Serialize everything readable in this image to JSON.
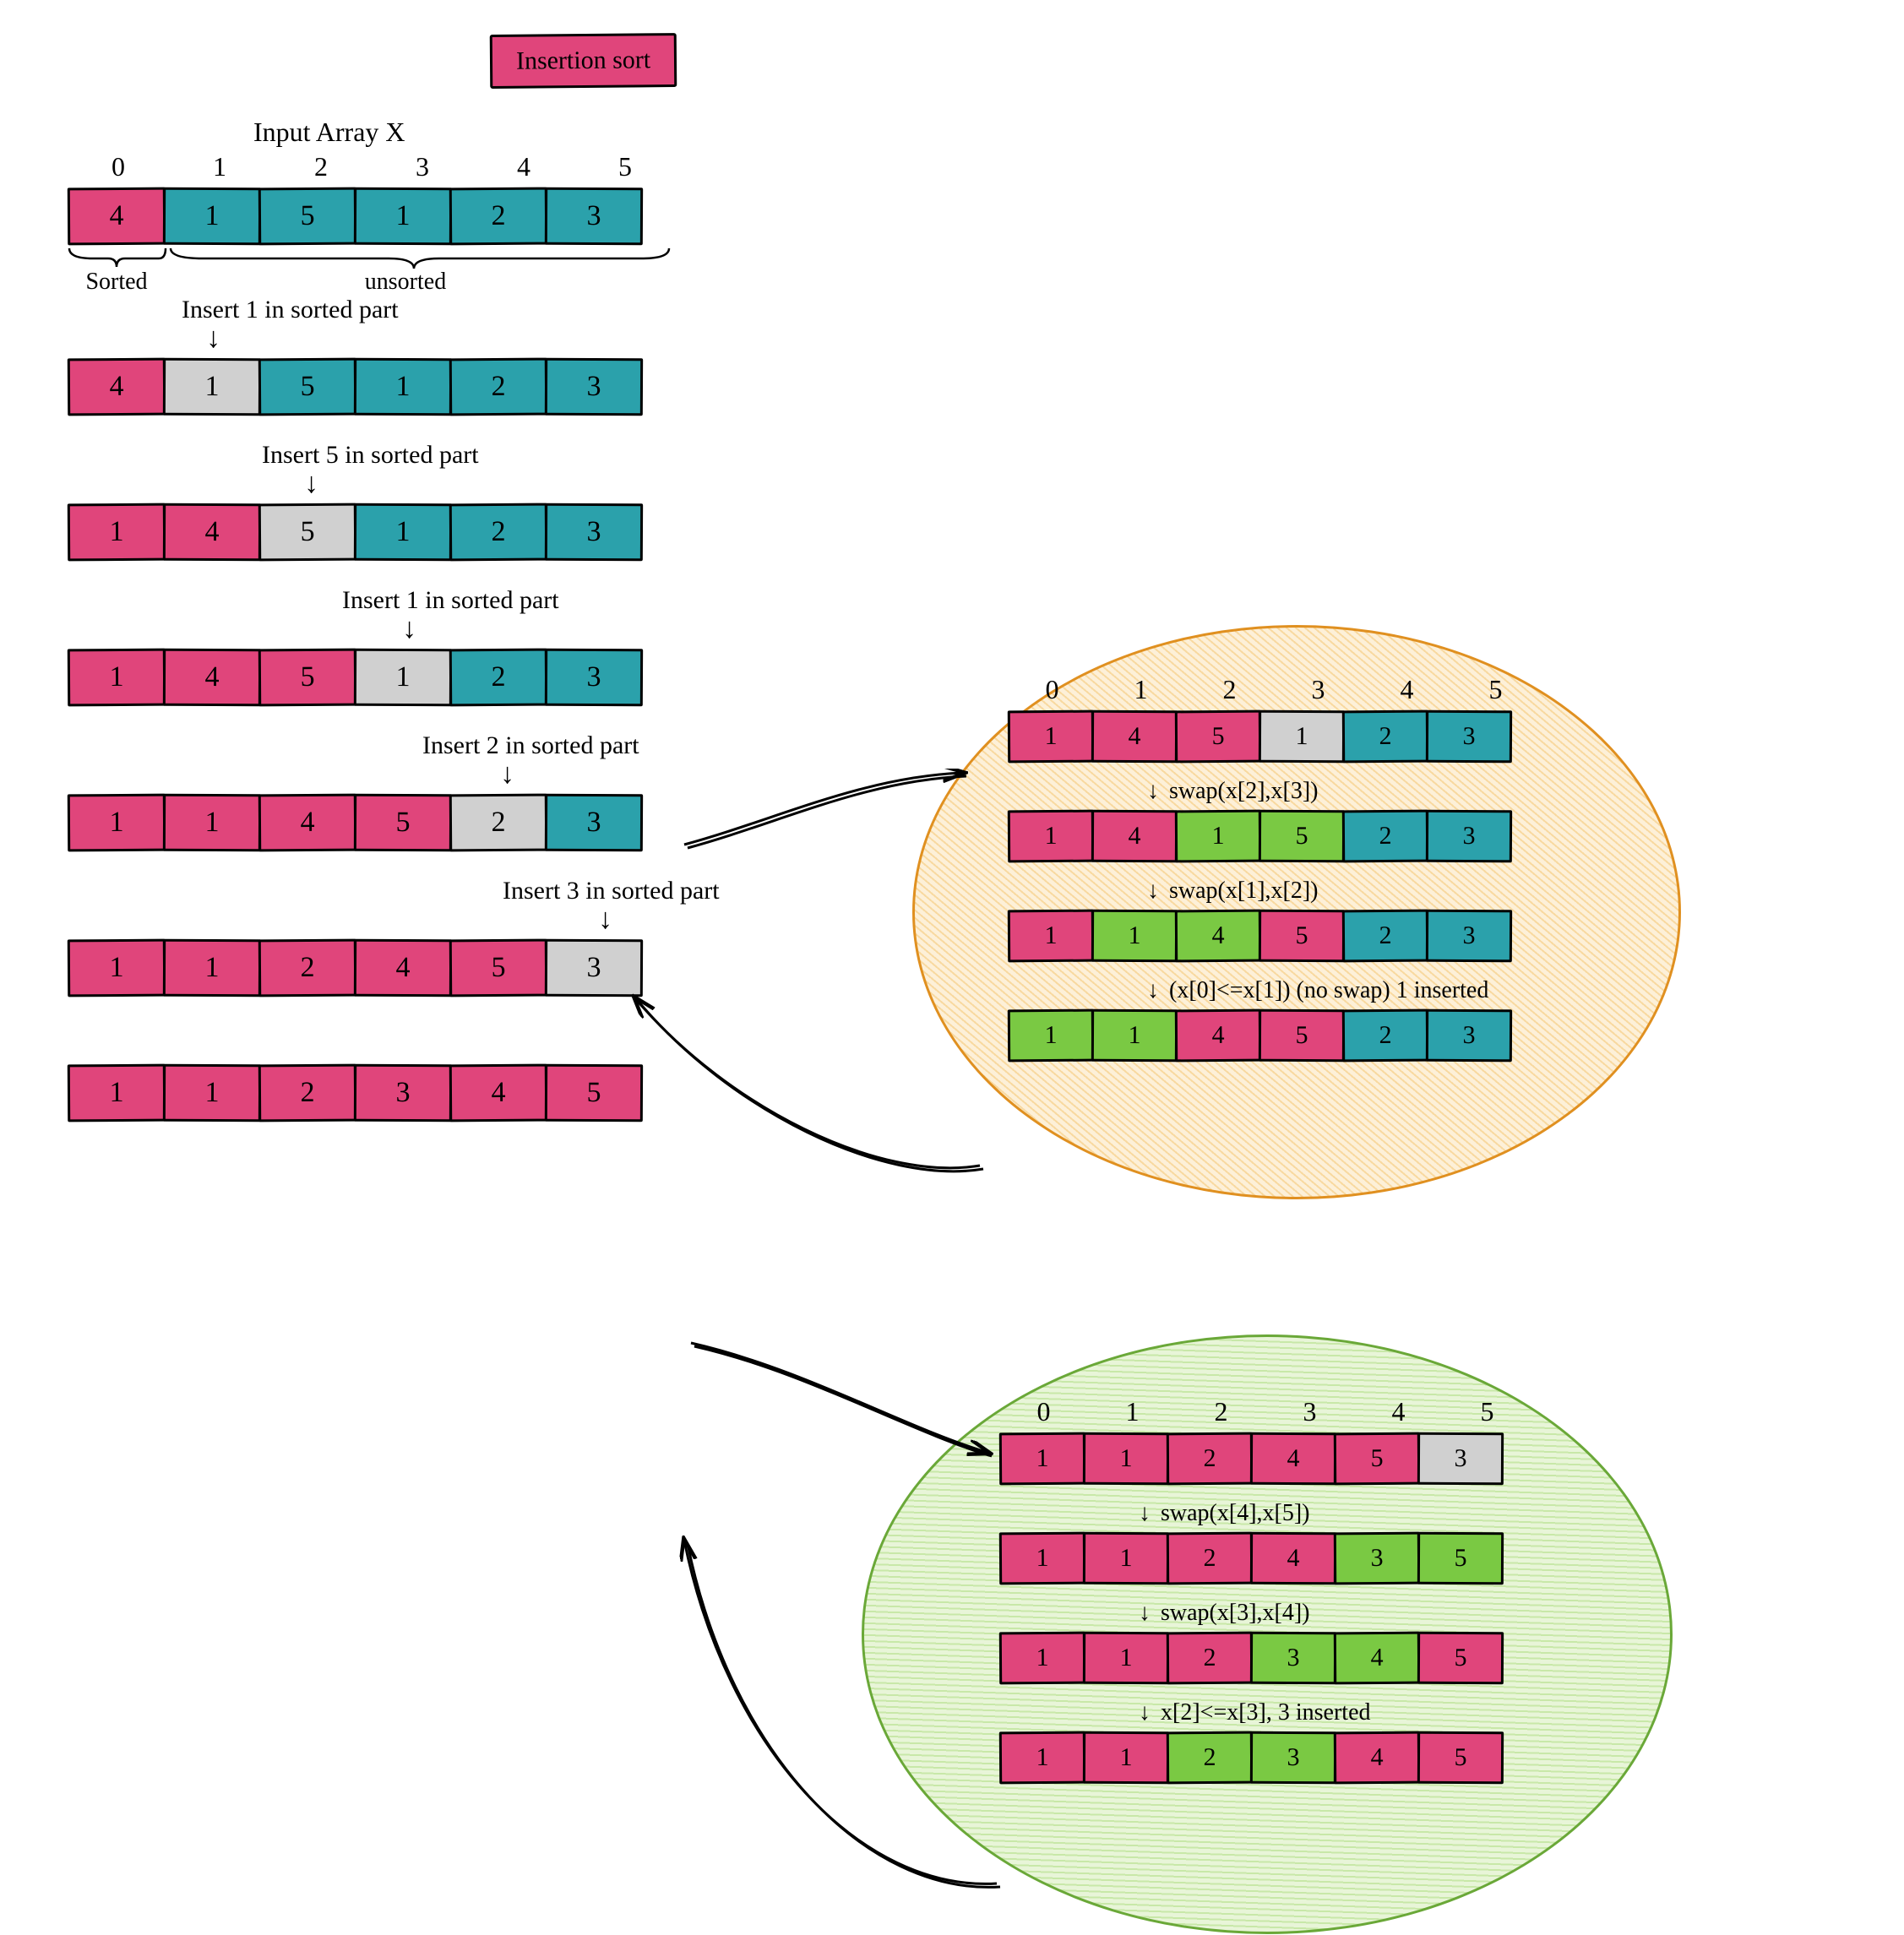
{
  "title": "Insertion sort",
  "input_label": "Input Array X",
  "indices": [
    "0",
    "1",
    "2",
    "3",
    "4",
    "5"
  ],
  "sorted_label": "Sorted",
  "unsorted_label": "unsorted",
  "colors": {
    "pink": "#e0457b",
    "teal": "#2ba1ab",
    "grey": "#d0d0d0",
    "green": "#7ac943",
    "callout_orange_stroke": "#e09020",
    "callout_orange_fill": "#f8d9a0",
    "callout_green_stroke": "#6aa838",
    "callout_green_fill": "#c8e8a8",
    "background": "#ffffff",
    "text": "#000000"
  },
  "typography": {
    "font_family": "Comic Sans MS / handwritten",
    "title_fontsize": 30,
    "label_fontsize": 32,
    "cell_fontsize": 34,
    "caption_fontsize": 30
  },
  "cell_size": {
    "main_w": 116,
    "main_h": 68,
    "small_w": 102,
    "small_h": 62
  },
  "main_steps": [
    {
      "caption": null,
      "cells": [
        {
          "v": "4",
          "c": "pink"
        },
        {
          "v": "1",
          "c": "teal"
        },
        {
          "v": "5",
          "c": "teal"
        },
        {
          "v": "1",
          "c": "teal"
        },
        {
          "v": "2",
          "c": "teal"
        },
        {
          "v": "3",
          "c": "teal"
        }
      ]
    },
    {
      "caption": "Insert 1 in sorted part",
      "arrow_at": 1,
      "cells": [
        {
          "v": "4",
          "c": "pink"
        },
        {
          "v": "1",
          "c": "grey"
        },
        {
          "v": "5",
          "c": "teal"
        },
        {
          "v": "1",
          "c": "teal"
        },
        {
          "v": "2",
          "c": "teal"
        },
        {
          "v": "3",
          "c": "teal"
        }
      ]
    },
    {
      "caption": "Insert 5 in sorted part",
      "arrow_at": 2,
      "cells": [
        {
          "v": "1",
          "c": "pink"
        },
        {
          "v": "4",
          "c": "pink"
        },
        {
          "v": "5",
          "c": "grey"
        },
        {
          "v": "1",
          "c": "teal"
        },
        {
          "v": "2",
          "c": "teal"
        },
        {
          "v": "3",
          "c": "teal"
        }
      ]
    },
    {
      "caption": "Insert 1 in sorted part",
      "arrow_at": 3,
      "cells": [
        {
          "v": "1",
          "c": "pink"
        },
        {
          "v": "4",
          "c": "pink"
        },
        {
          "v": "5",
          "c": "pink"
        },
        {
          "v": "1",
          "c": "grey"
        },
        {
          "v": "2",
          "c": "teal"
        },
        {
          "v": "3",
          "c": "teal"
        }
      ]
    },
    {
      "caption": "Insert 2 in sorted part",
      "arrow_at": 4,
      "cells": [
        {
          "v": "1",
          "c": "pink"
        },
        {
          "v": "1",
          "c": "pink"
        },
        {
          "v": "4",
          "c": "pink"
        },
        {
          "v": "5",
          "c": "pink"
        },
        {
          "v": "2",
          "c": "grey"
        },
        {
          "v": "3",
          "c": "teal"
        }
      ]
    },
    {
      "caption": "Insert 3 in sorted part",
      "arrow_at": 5,
      "cells": [
        {
          "v": "1",
          "c": "pink"
        },
        {
          "v": "1",
          "c": "pink"
        },
        {
          "v": "2",
          "c": "pink"
        },
        {
          "v": "4",
          "c": "pink"
        },
        {
          "v": "5",
          "c": "pink"
        },
        {
          "v": "3",
          "c": "grey"
        }
      ]
    },
    {
      "caption": null,
      "cells": [
        {
          "v": "1",
          "c": "pink"
        },
        {
          "v": "1",
          "c": "pink"
        },
        {
          "v": "2",
          "c": "pink"
        },
        {
          "v": "3",
          "c": "pink"
        },
        {
          "v": "4",
          "c": "pink"
        },
        {
          "v": "5",
          "c": "pink"
        }
      ]
    }
  ],
  "callout_orange": {
    "indices": [
      "0",
      "1",
      "2",
      "3",
      "4",
      "5"
    ],
    "rows": [
      {
        "label": null,
        "cells": [
          {
            "v": "1",
            "c": "pink"
          },
          {
            "v": "4",
            "c": "pink"
          },
          {
            "v": "5",
            "c": "pink"
          },
          {
            "v": "1",
            "c": "grey"
          },
          {
            "v": "2",
            "c": "teal"
          },
          {
            "v": "3",
            "c": "teal"
          }
        ]
      },
      {
        "label": "swap(x[2],x[3])",
        "cells": [
          {
            "v": "1",
            "c": "pink"
          },
          {
            "v": "4",
            "c": "pink"
          },
          {
            "v": "1",
            "c": "green"
          },
          {
            "v": "5",
            "c": "green"
          },
          {
            "v": "2",
            "c": "teal"
          },
          {
            "v": "3",
            "c": "teal"
          }
        ]
      },
      {
        "label": "swap(x[1],x[2])",
        "cells": [
          {
            "v": "1",
            "c": "pink"
          },
          {
            "v": "1",
            "c": "green"
          },
          {
            "v": "4",
            "c": "green"
          },
          {
            "v": "5",
            "c": "pink"
          },
          {
            "v": "2",
            "c": "teal"
          },
          {
            "v": "3",
            "c": "teal"
          }
        ]
      },
      {
        "label": "(x[0]<=x[1]) (no swap) 1 inserted",
        "cells": [
          {
            "v": "1",
            "c": "green"
          },
          {
            "v": "1",
            "c": "green"
          },
          {
            "v": "4",
            "c": "pink"
          },
          {
            "v": "5",
            "c": "pink"
          },
          {
            "v": "2",
            "c": "teal"
          },
          {
            "v": "3",
            "c": "teal"
          }
        ]
      }
    ]
  },
  "callout_green": {
    "indices": [
      "0",
      "1",
      "2",
      "3",
      "4",
      "5"
    ],
    "rows": [
      {
        "label": null,
        "cells": [
          {
            "v": "1",
            "c": "pink"
          },
          {
            "v": "1",
            "c": "pink"
          },
          {
            "v": "2",
            "c": "pink"
          },
          {
            "v": "4",
            "c": "pink"
          },
          {
            "v": "5",
            "c": "pink"
          },
          {
            "v": "3",
            "c": "grey"
          }
        ]
      },
      {
        "label": "swap(x[4],x[5])",
        "cells": [
          {
            "v": "1",
            "c": "pink"
          },
          {
            "v": "1",
            "c": "pink"
          },
          {
            "v": "2",
            "c": "pink"
          },
          {
            "v": "4",
            "c": "pink"
          },
          {
            "v": "3",
            "c": "green"
          },
          {
            "v": "5",
            "c": "green"
          }
        ]
      },
      {
        "label": "swap(x[3],x[4])",
        "cells": [
          {
            "v": "1",
            "c": "pink"
          },
          {
            "v": "1",
            "c": "pink"
          },
          {
            "v": "2",
            "c": "pink"
          },
          {
            "v": "3",
            "c": "green"
          },
          {
            "v": "4",
            "c": "green"
          },
          {
            "v": "5",
            "c": "pink"
          }
        ]
      },
      {
        "label": "x[2]<=x[3], 3 inserted",
        "cells": [
          {
            "v": "1",
            "c": "pink"
          },
          {
            "v": "1",
            "c": "pink"
          },
          {
            "v": "2",
            "c": "green"
          },
          {
            "v": "3",
            "c": "green"
          },
          {
            "v": "4",
            "c": "pink"
          },
          {
            "v": "5",
            "c": "pink"
          }
        ]
      }
    ]
  }
}
